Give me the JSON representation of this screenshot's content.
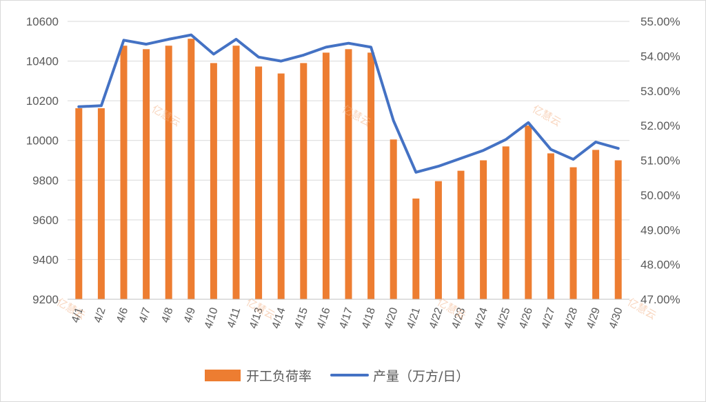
{
  "chart_data": {
    "type": "bar+line",
    "categories": [
      "4/1",
      "4/2",
      "4/6",
      "4/7",
      "4/8",
      "4/9",
      "4/10",
      "4/11",
      "4/13",
      "4/14",
      "4/15",
      "4/16",
      "4/17",
      "4/18",
      "4/20",
      "4/21",
      "4/22",
      "4/23",
      "4/24",
      "4/25",
      "4/26",
      "4/27",
      "4/28",
      "4/29",
      "4/30"
    ],
    "series": [
      {
        "name": "开工负荷率",
        "type": "bar",
        "axis": "right",
        "color": "#ED7D31",
        "values": [
          52.5,
          52.5,
          54.3,
          54.2,
          54.3,
          54.5,
          53.8,
          54.3,
          53.7,
          53.5,
          53.8,
          54.1,
          54.2,
          54.1,
          51.6,
          49.9,
          50.4,
          50.7,
          51.0,
          51.4,
          52.0,
          51.2,
          50.8,
          51.3,
          51.0
        ]
      },
      {
        "name": "产量（万方/日）",
        "type": "line",
        "axis": "left",
        "color": "#4472C4",
        "values": [
          10170,
          10175,
          10505,
          10485,
          10510,
          10532,
          10435,
          10510,
          10420,
          10400,
          10430,
          10470,
          10490,
          10470,
          10100,
          9840,
          9870,
          9910,
          9950,
          10005,
          10090,
          9955,
          9905,
          9992,
          9960
        ]
      }
    ],
    "yleft": {
      "min": 9200,
      "max": 10600,
      "step": 200,
      "ticks": [
        "9200",
        "9400",
        "9600",
        "9800",
        "10000",
        "10200",
        "10400",
        "10600"
      ]
    },
    "yright": {
      "min": 47,
      "max": 55,
      "step": 1,
      "ticks": [
        "47.00%",
        "48.00%",
        "49.00%",
        "50.00%",
        "51.00%",
        "52.00%",
        "53.00%",
        "54.00%",
        "55.00%"
      ]
    },
    "grid": true,
    "legend_position": "bottom"
  },
  "watermark": {
    "text": "亿慧云"
  }
}
